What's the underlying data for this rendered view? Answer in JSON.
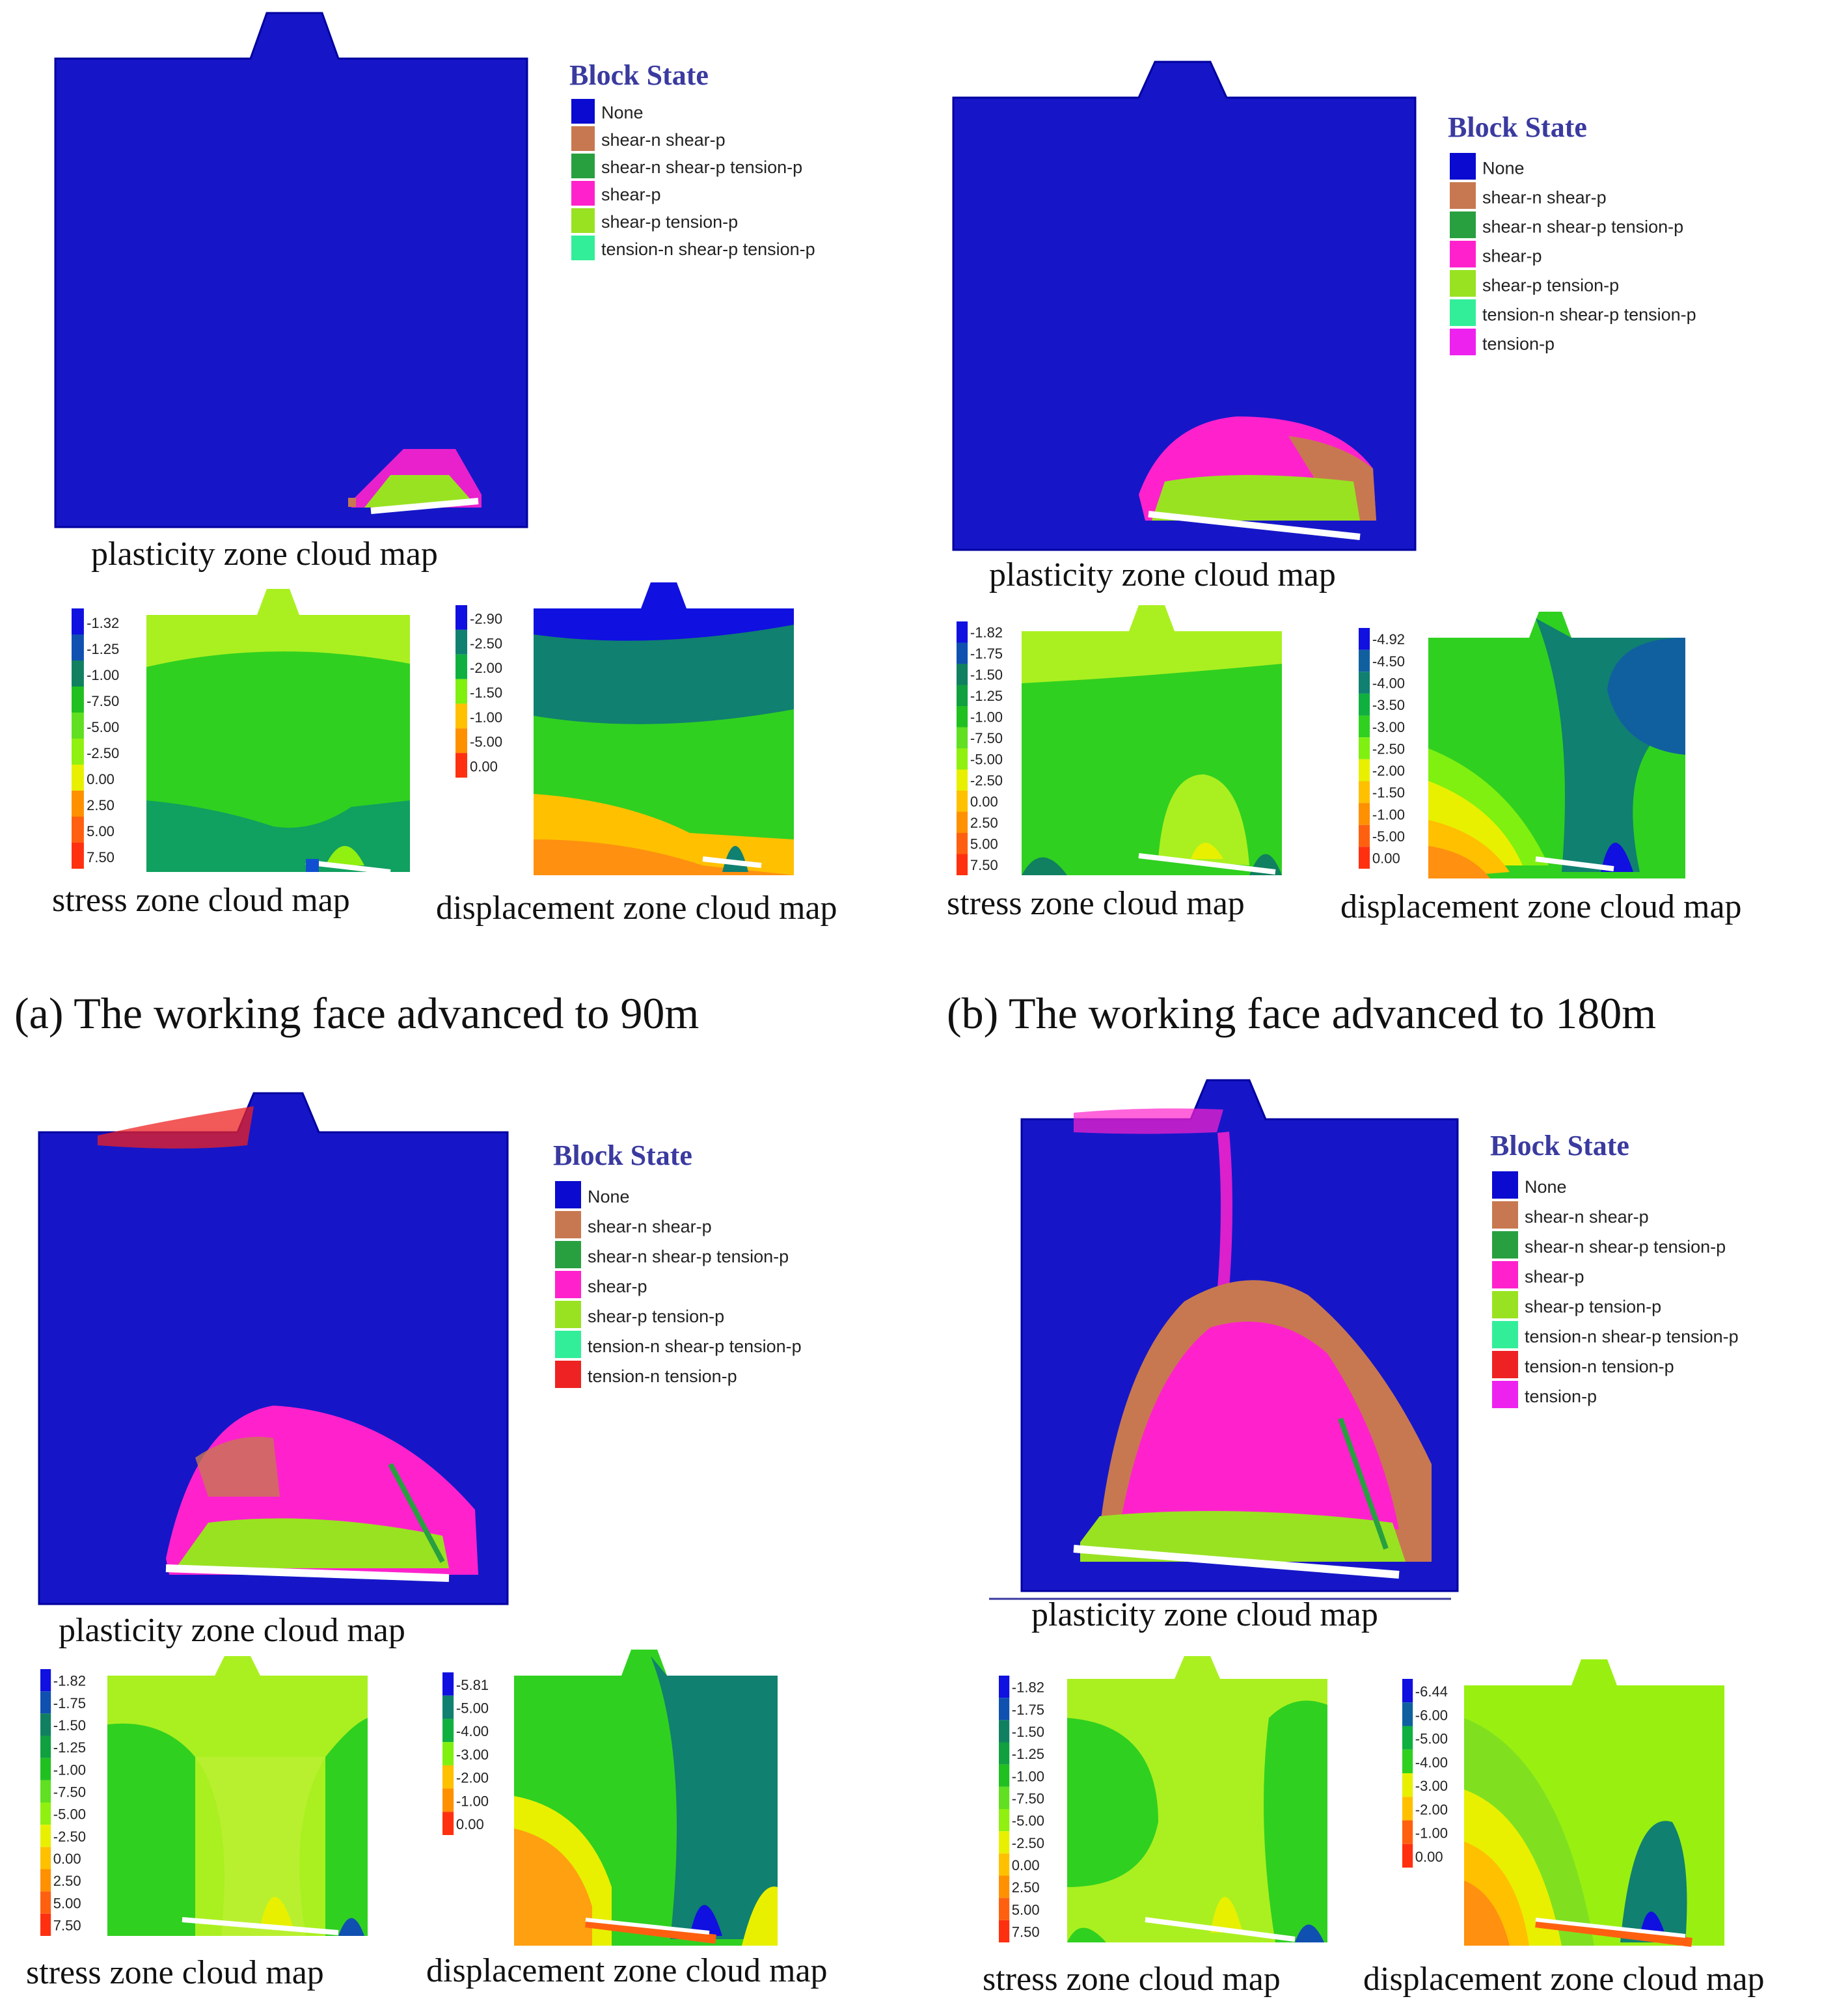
{
  "panels": [
    {
      "id": "a",
      "caption": "(a) The working face advanced to 90m",
      "plasticity_label": "plasticity zone cloud map",
      "stress_label": "stress zone cloud map",
      "displacement_label": "displacement zone cloud map",
      "legend_title": "Block State",
      "legend_items": [
        {
          "label": "None",
          "color": "#0a0ad0"
        },
        {
          "label": "shear-n shear-p",
          "color": "#c87850"
        },
        {
          "label": "shear-n shear-p tension-p",
          "color": "#28a040"
        },
        {
          "label": "shear-p",
          "color": "#ff22cc"
        },
        {
          "label": "shear-p tension-p",
          "color": "#99e222"
        },
        {
          "label": "tension-n shear-p tension-p",
          "color": "#33ee99"
        }
      ],
      "stress_ticks": [
        "-1.32",
        "-1.25",
        "-1.00",
        "-7.50",
        "-5.00",
        "-2.50",
        "0.00",
        "2.50",
        "5.00",
        "7.50"
      ],
      "displacement_ticks": [
        "-2.90",
        "-2.50",
        "-2.00",
        "-1.50",
        "-1.00",
        "-5.00",
        "0.00"
      ]
    },
    {
      "id": "b",
      "caption": "(b) The working face advanced to 180m",
      "plasticity_label": "plasticity zone cloud map",
      "stress_label": "stress zone cloud map",
      "displacement_label": "displacement zone cloud map",
      "legend_title": "Block State",
      "legend_items": [
        {
          "label": "None",
          "color": "#0a0ad0"
        },
        {
          "label": "shear-n shear-p",
          "color": "#c87850"
        },
        {
          "label": "shear-n shear-p tension-p",
          "color": "#28a040"
        },
        {
          "label": "shear-p",
          "color": "#ff22cc"
        },
        {
          "label": "shear-p tension-p",
          "color": "#99e222"
        },
        {
          "label": "tension-n shear-p tension-p",
          "color": "#33ee99"
        },
        {
          "label": "tension-p",
          "color": "#ee22ee"
        }
      ],
      "stress_ticks": [
        "-1.82",
        "-1.75",
        "-1.50",
        "-1.25",
        "-1.00",
        "-7.50",
        "-5.00",
        "-2.50",
        "0.00",
        "2.50",
        "5.00",
        "7.50"
      ],
      "displacement_ticks": [
        "-4.92",
        "-4.50",
        "-4.00",
        "-3.50",
        "-3.00",
        "-2.50",
        "-2.00",
        "-1.50",
        "-1.00",
        "-5.00",
        "0.00"
      ]
    },
    {
      "id": "c",
      "caption": "",
      "plasticity_label": "plasticity zone cloud map",
      "stress_label": "stress zone cloud map",
      "displacement_label": "displacement zone cloud map",
      "legend_title": "Block State",
      "legend_items": [
        {
          "label": "None",
          "color": "#0a0ad0"
        },
        {
          "label": "shear-n shear-p",
          "color": "#c87850"
        },
        {
          "label": "shear-n shear-p tension-p",
          "color": "#28a040"
        },
        {
          "label": "shear-p",
          "color": "#ff22cc"
        },
        {
          "label": "shear-p tension-p",
          "color": "#99e222"
        },
        {
          "label": "tension-n shear-p tension-p",
          "color": "#33ee99"
        },
        {
          "label": "tension-n tension-p",
          "color": "#ee2222"
        }
      ],
      "stress_ticks": [
        "-1.82",
        "-1.75",
        "-1.50",
        "-1.25",
        "-1.00",
        "-7.50",
        "-5.00",
        "-2.50",
        "0.00",
        "2.50",
        "5.00",
        "7.50"
      ],
      "displacement_ticks": [
        "-5.81",
        "-5.00",
        "-4.00",
        "-3.00",
        "-2.00",
        "-1.00",
        "0.00"
      ]
    },
    {
      "id": "d",
      "caption": "",
      "plasticity_label": "plasticity zone cloud map",
      "stress_label": "stress zone cloud map",
      "displacement_label": "displacement zone cloud map",
      "legend_title": "Block State",
      "legend_items": [
        {
          "label": "None",
          "color": "#0a0ad0"
        },
        {
          "label": "shear-n shear-p",
          "color": "#c87850"
        },
        {
          "label": "shear-n shear-p tension-p",
          "color": "#28a040"
        },
        {
          "label": "shear-p",
          "color": "#ff22cc"
        },
        {
          "label": "shear-p tension-p",
          "color": "#99e222"
        },
        {
          "label": "tension-n shear-p tension-p",
          "color": "#33ee99"
        },
        {
          "label": "tension-n tension-p",
          "color": "#ee2222"
        },
        {
          "label": "tension-p",
          "color": "#ee22ee"
        }
      ],
      "stress_ticks": [
        "-1.82",
        "-1.75",
        "-1.50",
        "-1.25",
        "-1.00",
        "-7.50",
        "-5.00",
        "-2.50",
        "0.00",
        "2.50",
        "5.00",
        "7.50"
      ],
      "displacement_ticks": [
        "-6.44",
        "-6.00",
        "-5.00",
        "-4.00",
        "-3.00",
        "-2.00",
        "-1.00",
        "0.00"
      ]
    }
  ],
  "stress_scale_colors": [
    "#1010e0",
    "#1050b0",
    "#108060",
    "#10a040",
    "#20c020",
    "#60e020",
    "#90f010",
    "#e8f000",
    "#ffc000",
    "#ff9000",
    "#ff6010",
    "#ff3010"
  ],
  "displacement_scale_colors": [
    "#1010e0",
    "#1060a0",
    "#108070",
    "#10b040",
    "#30d020",
    "#80f010",
    "#e8f000",
    "#ffc000",
    "#ff9000",
    "#ff6010",
    "#ff3010"
  ]
}
